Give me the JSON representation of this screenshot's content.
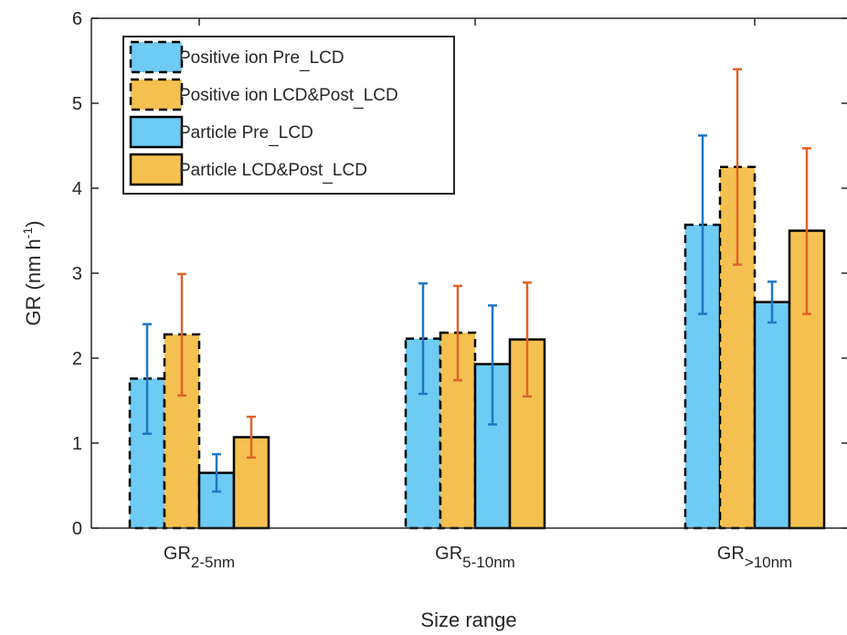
{
  "chart_data": {
    "type": "bar",
    "title": "",
    "xlabel": "Size range",
    "ylabel": {
      "main": "GR (nm h",
      "sup": "-1",
      "end": ")"
    },
    "ylim": [
      0,
      6
    ],
    "yticks": [
      0,
      1,
      2,
      3,
      4,
      5,
      6
    ],
    "categories": [
      {
        "main": "GR",
        "sub": "2-5nm"
      },
      {
        "main": "GR",
        "sub": "5-10nm"
      },
      {
        "main": "GR",
        "sub": ">10nm"
      }
    ],
    "legend_position": "top-left",
    "grid": false,
    "series": [
      {
        "name": {
          "a": "Positive ion Pre",
          "b": "LCD"
        },
        "values": [
          1.76,
          2.23,
          3.57
        ],
        "err_low": [
          1.11,
          1.58,
          2.52
        ],
        "err_high": [
          2.4,
          2.88,
          4.62
        ],
        "fill": "#6ecbf3",
        "error_color": "#1f77c4",
        "dashed": true
      },
      {
        "name": {
          "a": "Positive ion LCD&Post",
          "b": "LCD"
        },
        "values": [
          2.28,
          2.3,
          4.25
        ],
        "err_low": [
          1.56,
          1.74,
          3.1
        ],
        "err_high": [
          2.99,
          2.85,
          5.4
        ],
        "fill": "#f4c150",
        "error_color": "#e0632a",
        "dashed": true
      },
      {
        "name": {
          "a": "Particle Pre",
          "b": "LCD"
        },
        "values": [
          0.65,
          1.93,
          2.66
        ],
        "err_low": [
          0.43,
          1.22,
          2.42
        ],
        "err_high": [
          0.87,
          2.62,
          2.9
        ],
        "fill": "#6ecbf3",
        "error_color": "#1f77c4",
        "dashed": false
      },
      {
        "name": {
          "a": "Particle LCD&Post",
          "b": "LCD"
        },
        "values": [
          1.07,
          2.22,
          3.5
        ],
        "err_low": [
          0.83,
          1.55,
          2.52
        ],
        "err_high": [
          1.31,
          2.89,
          4.47
        ],
        "fill": "#f4c150",
        "error_color": "#e0632a",
        "dashed": false
      }
    ]
  }
}
